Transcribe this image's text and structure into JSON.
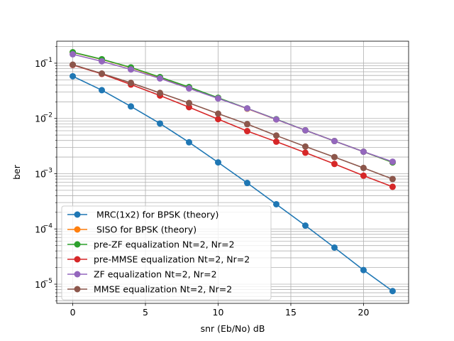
{
  "chart_data": {
    "type": "line",
    "title": "",
    "xlabel": "snr (Eb/No) dB",
    "ylabel": "ber",
    "xscale": "linear",
    "yscale": "log",
    "xlim": [
      -1.1,
      23.1
    ],
    "ylim": [
      4.5e-06,
      0.25
    ],
    "x_ticks": [
      0,
      5,
      10,
      15,
      20
    ],
    "y_ticks": [
      {
        "value": 1e-05,
        "base": "10",
        "exp": "−5"
      },
      {
        "value": 0.0001,
        "base": "10",
        "exp": "−4"
      },
      {
        "value": 0.001,
        "base": "10",
        "exp": "−3"
      },
      {
        "value": 0.01,
        "base": "10",
        "exp": "−2"
      },
      {
        "value": 0.1,
        "base": "10",
        "exp": "−1"
      }
    ],
    "grid": true,
    "legend_position": "lower-left",
    "x": [
      0,
      2,
      4,
      6,
      8,
      10,
      12,
      14,
      16,
      18,
      20,
      22
    ],
    "series": [
      {
        "name": " MRC(1x2) for BPSK (theory)",
        "color": "#1f77b4",
        "values": [
          0.058,
          0.0325,
          0.0165,
          0.0081,
          0.0037,
          0.0016,
          0.00068,
          0.00028,
          0.000115,
          4.6e-05,
          1.8e-05,
          7.5e-06
        ]
      },
      {
        "name": " SISO for BPSK (theory)",
        "color": "#ff7f0e",
        "values": [
          0.157,
          0.117,
          0.083,
          0.055,
          0.036,
          0.0235,
          0.015,
          0.0096,
          0.0061,
          0.0039,
          0.0025,
          0.0016
        ]
      },
      {
        "name": "pre-ZF equalization Nt=2, Nr=2",
        "color": "#2ca02c",
        "values": [
          0.158,
          0.118,
          0.084,
          0.056,
          0.037,
          0.0237,
          0.0152,
          0.0097,
          0.0061,
          0.0039,
          0.0025,
          0.0016
        ]
      },
      {
        "name": "pre-MMSE equalization Nt=2, Nr=2",
        "color": "#d62728",
        "values": [
          0.093,
          0.064,
          0.041,
          0.026,
          0.016,
          0.0097,
          0.0059,
          0.0038,
          0.0024,
          0.0015,
          0.00092,
          0.00058
        ]
      },
      {
        "name": "ZF equalization Nt=2, Nr=2",
        "color": "#9467bd",
        "values": [
          0.145,
          0.108,
          0.077,
          0.053,
          0.035,
          0.023,
          0.0152,
          0.0096,
          0.0061,
          0.0039,
          0.0025,
          0.00165
        ]
      },
      {
        "name": "MMSE equalization Nt=2, Nr=2",
        "color": "#8c564b",
        "values": [
          0.094,
          0.065,
          0.044,
          0.029,
          0.019,
          0.0122,
          0.0079,
          0.0049,
          0.0031,
          0.002,
          0.00127,
          0.0008
        ]
      }
    ]
  }
}
